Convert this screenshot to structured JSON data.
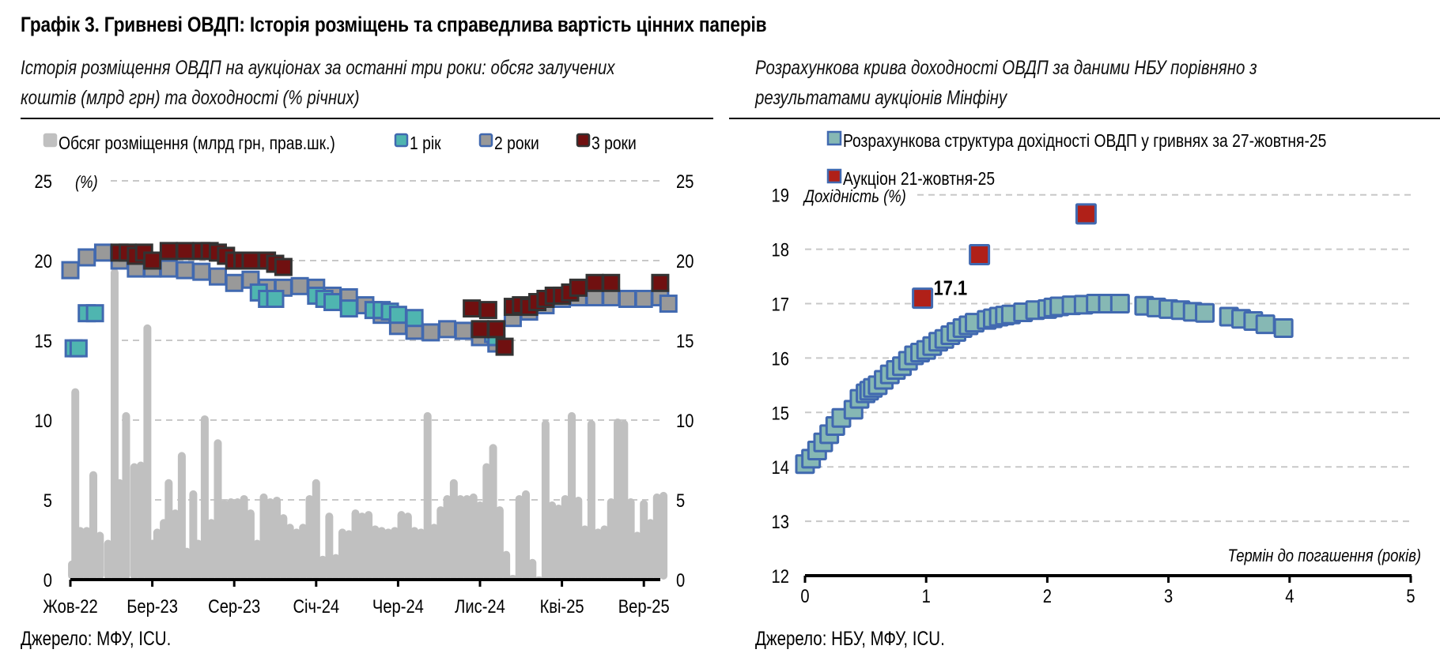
{
  "header": {
    "title": "Графік 3. Гривневі ОВДП: Історія розміщень та справедлива вартість цінних паперів"
  },
  "left_panel": {
    "subtitle_line1": "Історія розміщення ОВДП на аукціонах за останні три роки: обсяг залучених",
    "subtitle_line2": "коштів (млрд грн) та доходності (% річних)",
    "source": "Джерело: МФУ, ICU."
  },
  "right_panel": {
    "subtitle_line1": "Розрахункова крива доходності ОВДП за даними НБУ порівняно з",
    "subtitle_line2": "результатами аукціонів Мінфіну",
    "source": "Джерело: НБУ, МФУ, ICU."
  },
  "colors": {
    "volume": "#c0c0c0",
    "one_year": "#4fb5b0",
    "two_year": "#999999",
    "three_year": "#701010",
    "marker_border": "#4169b0",
    "three_year_border": "#333333",
    "curve_fill": "#86b8b4",
    "auction_fill": "#b02018"
  },
  "chart_data": [
    {
      "type": "bar+scatter",
      "title": "Історія розміщення ОВДП на аукціонах за останні три роки",
      "ylabel": "(%)",
      "y2label": "Обсяг розміщення (млрд грн, прав.шк.)",
      "ylim": [
        0,
        25
      ],
      "y2lim": [
        0,
        25
      ],
      "yticks": [
        0,
        5,
        10,
        15,
        20,
        25
      ],
      "y2ticks": [
        0,
        5,
        10,
        15,
        20,
        25
      ],
      "xticks": [
        "Жов-22",
        "Бер-23",
        "Сер-23",
        "Січ-24",
        "Чер-24",
        "Лис-24",
        "Кві-25",
        "Вер-25"
      ],
      "x_unit": "months since Oct-2022",
      "grid": true,
      "legend_position": "top",
      "legend": [
        "Обсяг розміщення (млрд грн, прав.шк.)",
        "1 рік",
        "2 роки",
        "3 роки"
      ],
      "series": [
        {
          "name": "Обсяг розміщення (млрд грн, прав.шк.)",
          "kind": "bar",
          "x": [
            0.1,
            0.3,
            0.6,
            1.0,
            1.4,
            1.8,
            2.3,
            2.7,
            3.0,
            3.4,
            3.9,
            4.3,
            4.7,
            5.0,
            5.3,
            5.7,
            6.0,
            6.4,
            6.8,
            7.1,
            7.5,
            7.8,
            8.2,
            8.6,
            9.0,
            9.4,
            9.8,
            10.2,
            10.6,
            11.0,
            11.4,
            11.8,
            12.2,
            12.6,
            13.0,
            13.4,
            13.8,
            14.2,
            14.6,
            15.0,
            15.4,
            15.8,
            16.2,
            16.6,
            17.0,
            17.4,
            17.8,
            18.2,
            18.6,
            19.0,
            19.4,
            19.8,
            20.2,
            20.6,
            21.0,
            21.4,
            21.8,
            22.2,
            22.6,
            23.0,
            23.4,
            23.8,
            24.2,
            24.6,
            25.0,
            25.4,
            25.8,
            26.2,
            26.6,
            27.0,
            27.4,
            27.8,
            28.2,
            28.6,
            29.0,
            29.4,
            29.8,
            30.2,
            30.6,
            31.0,
            31.4,
            31.8,
            32.2,
            32.6,
            33.0,
            33.4,
            33.8,
            34.2,
            34.6,
            35.0,
            35.4,
            35.8,
            36.2
          ],
          "values": [
            1.2,
            12.0,
            3.3,
            3.3,
            6.8,
            3.0,
            2.5,
            19.5,
            6.3,
            10.5,
            7.3,
            7.4,
            16.0,
            2.5,
            3.2,
            3.8,
            6.3,
            4.4,
            8.0,
            2.0,
            5.6,
            2.5,
            10.3,
            3.8,
            8.8,
            5.0,
            5.1,
            5.1,
            5.3,
            4.4,
            2.5,
            5.4,
            5.1,
            5.2,
            4.1,
            3.5,
            3.2,
            3.5,
            5.3,
            6.3,
            1.5,
            4.2,
            1.6,
            3.2,
            3.1,
            4.4,
            4.2,
            4.3,
            3.4,
            3.3,
            3.2,
            3.3,
            4.3,
            4.2,
            3.3,
            3.2,
            10.5,
            3.5,
            4.6,
            5.3,
            6.3,
            5.3,
            5.3,
            5.4,
            4.9,
            7.3,
            8.5,
            4.6,
            1.8,
            0.3,
            5.3,
            5.6,
            1.3,
            0.2,
            10.0,
            4.9,
            4.7,
            5.3,
            10.5,
            5.2,
            3.4,
            10.0,
            3.2,
            3.4,
            5.1,
            10.1,
            10.0,
            5.1,
            3.0,
            5.0,
            3.8,
            5.4,
            5.5
          ],
          "color": "#c0c0c0"
        },
        {
          "name": "1 рік",
          "kind": "scatter",
          "x": [
            0.2,
            0.5,
            1.0,
            1.5,
            11.5,
            12.0,
            12.5,
            15.0,
            15.5,
            16.0,
            17.0,
            18.5,
            19.0,
            19.5,
            20.0,
            21.0,
            25.8,
            26.0
          ],
          "values": [
            14.5,
            14.5,
            16.7,
            16.7,
            18.0,
            17.6,
            17.6,
            17.8,
            17.6,
            17.4,
            17.0,
            16.9,
            16.9,
            16.8,
            16.6,
            16.4,
            15.4,
            15.2
          ],
          "color": "#4fb5b0"
        },
        {
          "name": "2 роки",
          "kind": "scatter",
          "x": [
            0.0,
            1.0,
            2.0,
            3.0,
            4.0,
            5.0,
            6.0,
            7.0,
            8.0,
            9.0,
            10.0,
            11.0,
            12.0,
            13.0,
            14.0,
            15.0,
            16.0,
            17.0,
            18.0,
            19.0,
            20.0,
            21.0,
            22.0,
            23.0,
            24.0,
            25.0,
            26.0,
            27.0,
            28.0,
            29.0,
            30.0,
            31.0,
            32.0,
            33.0,
            34.0,
            35.0,
            36.0,
            36.5
          ],
          "values": [
            19.4,
            20.2,
            20.5,
            20.0,
            19.5,
            19.5,
            19.5,
            19.4,
            19.3,
            19.0,
            18.6,
            18.8,
            18.3,
            18.3,
            18.4,
            18.3,
            17.8,
            17.7,
            17.2,
            16.6,
            15.9,
            15.6,
            15.5,
            15.7,
            15.6,
            15.2,
            14.8,
            16.4,
            16.8,
            17.2,
            17.6,
            17.7,
            17.7,
            17.7,
            17.6,
            17.6,
            17.7,
            17.3
          ],
          "color": "#999999"
        },
        {
          "name": "3 роки",
          "kind": "scatter",
          "x": [
            3.0,
            3.5,
            4.0,
            4.5,
            5.0,
            6.0,
            7.0,
            8.0,
            8.5,
            9.0,
            9.5,
            10.0,
            10.5,
            11.0,
            12.0,
            12.5,
            13.0,
            24.5,
            25.0,
            25.5,
            26.0,
            26.5,
            27.0,
            27.5,
            28.0,
            28.5,
            29.0,
            29.5,
            30.0,
            30.5,
            31.0,
            32.0,
            33.0,
            36.0
          ],
          "values": [
            20.5,
            20.5,
            20.3,
            20.5,
            20.0,
            20.6,
            20.6,
            20.6,
            20.6,
            20.5,
            20.3,
            20.0,
            20.0,
            20.0,
            20.0,
            19.8,
            19.6,
            17.0,
            15.7,
            16.9,
            15.7,
            14.6,
            17.1,
            17.2,
            17.1,
            17.4,
            17.6,
            17.8,
            17.8,
            18.0,
            18.3,
            18.6,
            18.6,
            18.6
          ],
          "color": "#701010"
        }
      ]
    },
    {
      "type": "scatter",
      "title": "Розрахункова крива доходності ОВДП за даними НБУ порівняно з результатами аукціонів Мінфіну",
      "xlabel": "Термін до погашення (років)",
      "ylabel": "Дохідність (%)",
      "xlim": [
        0,
        5
      ],
      "ylim": [
        12,
        19
      ],
      "xticks": [
        0,
        1,
        2,
        3,
        4,
        5
      ],
      "yticks": [
        12,
        13,
        14,
        15,
        16,
        17,
        18,
        19
      ],
      "grid": true,
      "legend_position": "top",
      "legend": [
        "Розрахункова структура дохідності ОВДП у гривнях за 27-жовтня-25",
        "Аукціон 21-жовтня-25"
      ],
      "series": [
        {
          "name": "Розрахункова структура дохідності ОВДП у гривнях за 27-жовтня-25",
          "x": [
            0.0,
            0.05,
            0.1,
            0.15,
            0.2,
            0.25,
            0.3,
            0.4,
            0.45,
            0.5,
            0.53,
            0.56,
            0.6,
            0.65,
            0.7,
            0.75,
            0.8,
            0.85,
            0.9,
            0.95,
            1.0,
            1.05,
            1.1,
            1.15,
            1.2,
            1.25,
            1.3,
            1.35,
            1.4,
            1.5,
            1.55,
            1.6,
            1.65,
            1.7,
            1.8,
            1.9,
            2.0,
            2.05,
            2.1,
            2.2,
            2.3,
            2.4,
            2.5,
            2.6,
            2.8,
            2.9,
            3.0,
            3.1,
            3.2,
            3.3,
            3.5,
            3.6,
            3.7,
            3.8,
            3.95
          ],
          "values": [
            14.05,
            14.15,
            14.3,
            14.45,
            14.6,
            14.75,
            14.9,
            15.05,
            15.25,
            15.35,
            15.4,
            15.45,
            15.5,
            15.6,
            15.7,
            15.78,
            15.85,
            15.95,
            16.05,
            16.1,
            16.15,
            16.22,
            16.3,
            16.35,
            16.42,
            16.48,
            16.55,
            16.6,
            16.65,
            16.7,
            16.73,
            16.76,
            16.78,
            16.8,
            16.84,
            16.88,
            16.9,
            16.93,
            16.95,
            16.97,
            16.98,
            17.0,
            17.0,
            17.0,
            16.96,
            16.93,
            16.9,
            16.88,
            16.85,
            16.83,
            16.76,
            16.72,
            16.68,
            16.62,
            16.55
          ],
          "color": "#86b8b4"
        },
        {
          "name": "Аукціон 21-жовтня-25",
          "x": [
            0.97,
            1.44,
            2.32
          ],
          "values": [
            17.1,
            17.9,
            18.65
          ],
          "labels": [
            "17.1",
            "",
            ""
          ],
          "color": "#b02018"
        }
      ]
    }
  ]
}
